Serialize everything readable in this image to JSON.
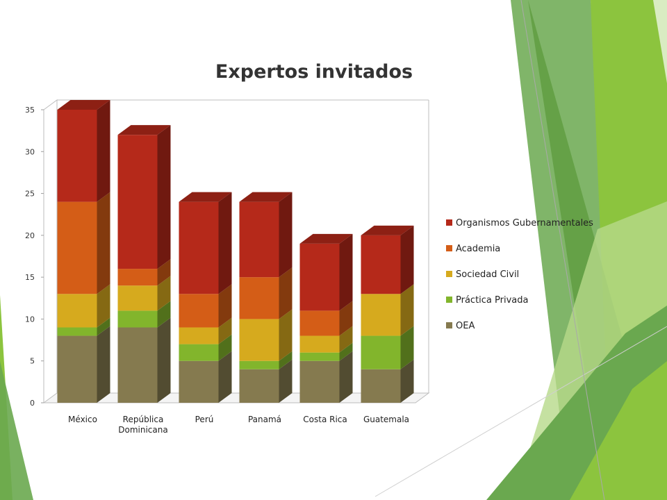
{
  "slide": {
    "decoration_colors": [
      "#4e8f2c",
      "#6aa84f",
      "#8cc43e",
      "#b7d98a",
      "#d9ecc2"
    ]
  },
  "chart_data": {
    "type": "bar",
    "stacked": true,
    "three_d": true,
    "title": "Expertos invitados",
    "categories": [
      "México",
      "República Dominicana",
      "Perú",
      "Panamá",
      "Costa Rica",
      "Guatemala"
    ],
    "series": [
      {
        "name": "OEA",
        "color": "#857a4f",
        "values": [
          8,
          9,
          5,
          4,
          5,
          4
        ]
      },
      {
        "name": "Práctica Privada",
        "color": "#82b52c",
        "values": [
          1,
          2,
          2,
          1,
          1,
          4
        ]
      },
      {
        "name": "Sociedad Civil",
        "color": "#d6aa1e",
        "values": [
          4,
          3,
          2,
          5,
          2,
          5
        ]
      },
      {
        "name": "Academia",
        "color": "#d45d17",
        "values": [
          11,
          2,
          4,
          5,
          3,
          0
        ]
      },
      {
        "name": "Organismos Gubernamentales",
        "color": "#b5291a",
        "values": [
          11,
          16,
          11,
          9,
          8,
          7
        ]
      }
    ],
    "legend_order": [
      "Organismos Gubernamentales",
      "Academia",
      "Sociedad Civil",
      "Práctica Privada",
      "OEA"
    ],
    "ylim": [
      0,
      35
    ],
    "yticks": [
      0,
      5,
      10,
      15,
      20,
      25,
      30,
      35
    ],
    "grid": false,
    "legend_position": "right"
  }
}
